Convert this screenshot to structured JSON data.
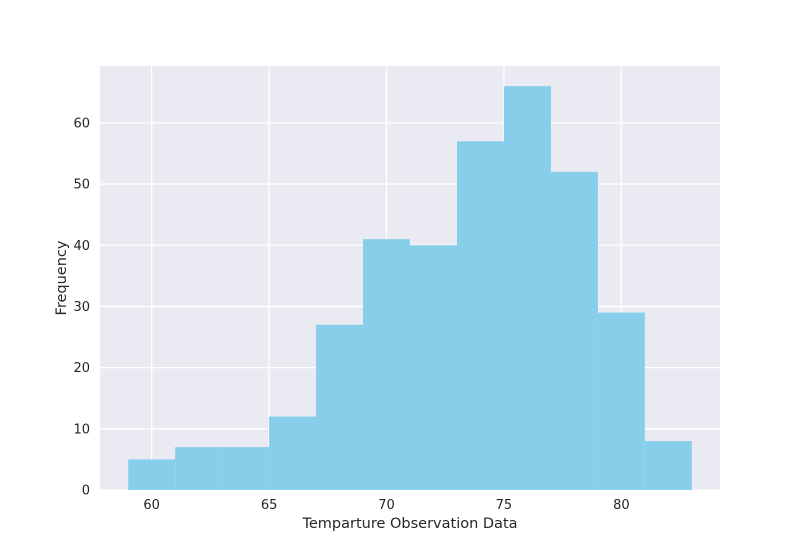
{
  "chart_data": {
    "type": "bar",
    "title": "",
    "xlabel": "Temparture Observation Data",
    "ylabel": "Frequency",
    "bins": [
      {
        "start": 59,
        "end": 61,
        "count": 5
      },
      {
        "start": 61,
        "end": 63,
        "count": 7
      },
      {
        "start": 63,
        "end": 65,
        "count": 7
      },
      {
        "start": 65,
        "end": 67,
        "count": 12
      },
      {
        "start": 67,
        "end": 69,
        "count": 27
      },
      {
        "start": 69,
        "end": 71,
        "count": 41
      },
      {
        "start": 71,
        "end": 73,
        "count": 40
      },
      {
        "start": 73,
        "end": 75,
        "count": 57
      },
      {
        "start": 75,
        "end": 77,
        "count": 66
      },
      {
        "start": 77,
        "end": 79,
        "count": 52
      },
      {
        "start": 79,
        "end": 81,
        "count": 29
      },
      {
        "start": 81,
        "end": 83,
        "count": 8
      }
    ],
    "xlim": [
      57.8,
      84.2
    ],
    "ylim": [
      0,
      69.3
    ],
    "xticks": [
      60,
      65,
      70,
      75,
      80
    ],
    "xtick_labels": [
      "60",
      "65",
      "70",
      "75",
      "80"
    ],
    "yticks": [
      0,
      10,
      20,
      30,
      40,
      50,
      60
    ],
    "ytick_labels": [
      "0",
      "10",
      "20",
      "30",
      "40",
      "50",
      "60"
    ],
    "grid": true,
    "colors": {
      "bar": "#87ceeb",
      "plot_background": "#eaeaf2",
      "grid": "#ffffff",
      "text": "#262626"
    }
  }
}
